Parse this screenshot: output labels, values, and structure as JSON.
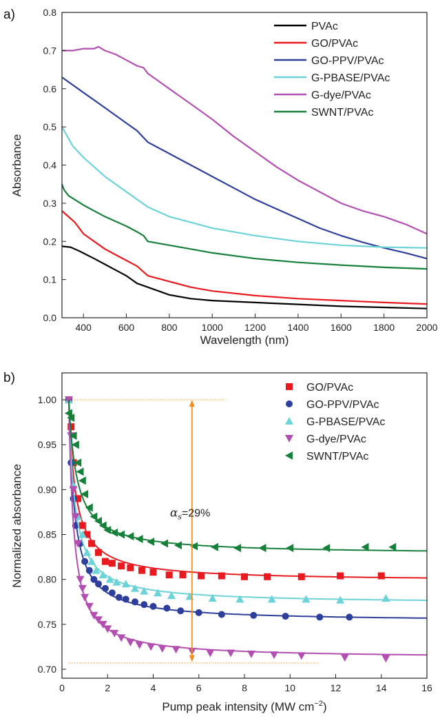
{
  "colors": {
    "PVAc": "#000000",
    "GO/PVAc": "#e8191f",
    "GO-PPV/PVAc": "#2e3e9b",
    "G-PBASE/PVAc": "#6cd3d9",
    "G-dye/PVAc": "#b24fb0",
    "SWNT/PVAc": "#16803b",
    "annotation": "#f09020"
  },
  "chart_data": [
    {
      "panel": "a)",
      "type": "line",
      "xlabel": "Wavelength (nm)",
      "ylabel": "Absorbance",
      "xlim": [
        300,
        2000
      ],
      "ylim": [
        0.0,
        0.8
      ],
      "xticks": [
        "400",
        "600",
        "800",
        "1000",
        "1200",
        "1400",
        "1600",
        "1800",
        "2000"
      ],
      "yticks": [
        "0.0",
        "0.1",
        "0.2",
        "0.3",
        "0.4",
        "0.5",
        "0.6",
        "0.7",
        "0.8"
      ],
      "legend_position": "top-right",
      "series": [
        {
          "name": "PVAc",
          "x": [
            300,
            340,
            380,
            450,
            500,
            550,
            600,
            650,
            700,
            800,
            900,
            1000,
            1200,
            1400,
            1600,
            1800,
            2000
          ],
          "y": [
            0.187,
            0.185,
            0.175,
            0.155,
            0.14,
            0.125,
            0.11,
            0.09,
            0.08,
            0.06,
            0.05,
            0.045,
            0.04,
            0.035,
            0.03,
            0.027,
            0.024
          ]
        },
        {
          "name": "GO/PVAc",
          "x": [
            300,
            320,
            360,
            400,
            450,
            500,
            550,
            600,
            650,
            700,
            800,
            900,
            1000,
            1200,
            1400,
            1600,
            1800,
            2000
          ],
          "y": [
            0.28,
            0.27,
            0.25,
            0.22,
            0.2,
            0.18,
            0.165,
            0.15,
            0.135,
            0.11,
            0.095,
            0.08,
            0.07,
            0.058,
            0.05,
            0.045,
            0.04,
            0.036
          ]
        },
        {
          "name": "GO-PPV/PVAc",
          "x": [
            300,
            400,
            500,
            600,
            650,
            700,
            800,
            900,
            1000,
            1100,
            1200,
            1300,
            1400,
            1500,
            1600,
            1700,
            1800,
            1900,
            2000
          ],
          "y": [
            0.63,
            0.59,
            0.55,
            0.51,
            0.49,
            0.46,
            0.43,
            0.4,
            0.37,
            0.34,
            0.31,
            0.285,
            0.26,
            0.235,
            0.215,
            0.198,
            0.183,
            0.17,
            0.155
          ]
        },
        {
          "name": "G-PBASE/PVAc",
          "x": [
            300,
            320,
            350,
            400,
            500,
            600,
            650,
            700,
            800,
            900,
            1000,
            1200,
            1400,
            1600,
            1800,
            2000
          ],
          "y": [
            0.5,
            0.48,
            0.45,
            0.42,
            0.37,
            0.33,
            0.31,
            0.29,
            0.265,
            0.25,
            0.235,
            0.215,
            0.2,
            0.19,
            0.185,
            0.183
          ]
        },
        {
          "name": "G-dye/PVAc",
          "x": [
            300,
            350,
            400,
            450,
            470,
            500,
            550,
            600,
            650,
            680,
            700,
            800,
            900,
            1000,
            1100,
            1200,
            1300,
            1400,
            1500,
            1600,
            1700,
            1800,
            1900,
            2000
          ],
          "y": [
            0.7,
            0.7,
            0.705,
            0.705,
            0.71,
            0.7,
            0.69,
            0.675,
            0.66,
            0.655,
            0.64,
            0.6,
            0.56,
            0.52,
            0.475,
            0.435,
            0.395,
            0.36,
            0.33,
            0.3,
            0.28,
            0.265,
            0.245,
            0.22
          ]
        },
        {
          "name": "SWNT/PVAc",
          "x": [
            300,
            310,
            330,
            400,
            500,
            600,
            650,
            680,
            700,
            800,
            900,
            1000,
            1200,
            1400,
            1600,
            1800,
            2000
          ],
          "y": [
            0.35,
            0.335,
            0.32,
            0.295,
            0.265,
            0.24,
            0.225,
            0.215,
            0.2,
            0.19,
            0.18,
            0.17,
            0.155,
            0.145,
            0.138,
            0.132,
            0.128
          ]
        }
      ]
    },
    {
      "panel": "b)",
      "type": "scatter",
      "xlabel": "Pump peak intensity (MW cm",
      "xlabel_superscript": "−2",
      "xlabel_close": ")",
      "ylabel": "Normalized absorbance",
      "xlim": [
        0,
        16
      ],
      "ylim": [
        0.69,
        1.03
      ],
      "xticks": [
        "0",
        "2",
        "4",
        "6",
        "8",
        "10",
        "12",
        "14",
        "16"
      ],
      "yticks": [
        "0.70",
        "0.75",
        "0.80",
        "0.85",
        "0.90",
        "0.95",
        "1.00"
      ],
      "legend_position": "top-right",
      "annotation": {
        "symbol": "α",
        "subscript": "s",
        "text": "=29%",
        "x": 5.7,
        "y_top": 1.0,
        "y_bottom": 0.708
      },
      "reference_lines": [
        1.0,
        0.707
      ],
      "series": [
        {
          "name": "GO/PVAc",
          "marker": "square",
          "asymptote": 0.798,
          "k": 0.82,
          "x": [
            0.3,
            0.4,
            0.5,
            0.7,
            0.9,
            1.1,
            1.3,
            1.6,
            1.9,
            2.2,
            2.6,
            3.0,
            3.5,
            4.0,
            4.7,
            5.3,
            6.1,
            7.0,
            8.0,
            9.0,
            10.5,
            12.2,
            14.0
          ],
          "y": [
            1.0,
            0.97,
            0.93,
            0.89,
            0.86,
            0.85,
            0.84,
            0.83,
            0.82,
            0.818,
            0.815,
            0.813,
            0.81,
            0.808,
            0.805,
            0.805,
            0.804,
            0.804,
            0.803,
            0.803,
            0.803,
            0.804,
            0.804
          ]
        },
        {
          "name": "GO-PPV/PVAc",
          "marker": "circle",
          "asymptote": 0.753,
          "k": 0.72,
          "x": [
            0.3,
            0.4,
            0.5,
            0.6,
            0.8,
            1.0,
            1.2,
            1.4,
            1.6,
            1.9,
            2.2,
            2.5,
            2.8,
            3.2,
            3.6,
            4.0,
            4.6,
            5.2,
            6.0,
            7.0,
            8.4,
            9.8,
            11.3,
            12.6
          ],
          "y": [
            1.0,
            0.93,
            0.89,
            0.86,
            0.84,
            0.82,
            0.81,
            0.8,
            0.795,
            0.79,
            0.785,
            0.78,
            0.778,
            0.775,
            0.772,
            0.77,
            0.768,
            0.765,
            0.763,
            0.761,
            0.76,
            0.759,
            0.758,
            0.758
          ]
        },
        {
          "name": "G-PBASE/PVAc",
          "marker": "triangle-up",
          "asymptote": 0.773,
          "k": 0.75,
          "x": [
            0.3,
            0.5,
            0.7,
            0.9,
            1.1,
            1.3,
            1.5,
            1.8,
            2.1,
            2.4,
            2.8,
            3.2,
            3.6,
            4.2,
            4.8,
            5.6,
            6.6,
            7.8,
            9.2,
            10.7,
            12.2,
            14.2
          ],
          "y": [
            1.0,
            0.905,
            0.87,
            0.85,
            0.83,
            0.82,
            0.81,
            0.805,
            0.8,
            0.797,
            0.795,
            0.79,
            0.787,
            0.785,
            0.782,
            0.781,
            0.779,
            0.778,
            0.778,
            0.778,
            0.777,
            0.779
          ]
        },
        {
          "name": "G-dye/PVAc",
          "marker": "triangle-down",
          "asymptote": 0.712,
          "k": 0.62,
          "x": [
            0.3,
            0.4,
            0.5,
            0.6,
            0.7,
            0.8,
            0.9,
            1.0,
            1.2,
            1.4,
            1.6,
            1.8,
            2.0,
            2.3,
            2.6,
            3.0,
            3.4,
            3.9,
            4.4,
            5.0,
            5.7,
            6.5,
            7.4,
            8.3,
            9.3,
            10.5,
            12.4,
            14.2
          ],
          "y": [
            1.0,
            0.96,
            0.9,
            0.87,
            0.84,
            0.8,
            0.79,
            0.78,
            0.77,
            0.76,
            0.755,
            0.75,
            0.745,
            0.74,
            0.735,
            0.73,
            0.727,
            0.725,
            0.723,
            0.722,
            0.72,
            0.718,
            0.718,
            0.717,
            0.716,
            0.715,
            0.713,
            0.712
          ]
        },
        {
          "name": "SWNT/PVAc",
          "marker": "triangle-left",
          "asymptote": 0.828,
          "k": 1.0,
          "x": [
            0.3,
            0.4,
            0.5,
            0.6,
            0.7,
            0.8,
            0.9,
            1.0,
            1.2,
            1.4,
            1.6,
            1.8,
            2.0,
            2.3,
            2.6,
            3.0,
            3.4,
            3.9,
            4.5,
            5.1,
            5.8,
            6.7,
            7.7,
            8.8,
            10.0,
            11.6,
            13.3,
            14.5
          ],
          "y": [
            0.985,
            0.98,
            0.96,
            0.95,
            0.93,
            0.92,
            0.91,
            0.895,
            0.88,
            0.87,
            0.865,
            0.86,
            0.855,
            0.852,
            0.85,
            0.848,
            0.845,
            0.842,
            0.84,
            0.838,
            0.837,
            0.836,
            0.835,
            0.835,
            0.835,
            0.835,
            0.836,
            0.836
          ]
        }
      ]
    }
  ]
}
